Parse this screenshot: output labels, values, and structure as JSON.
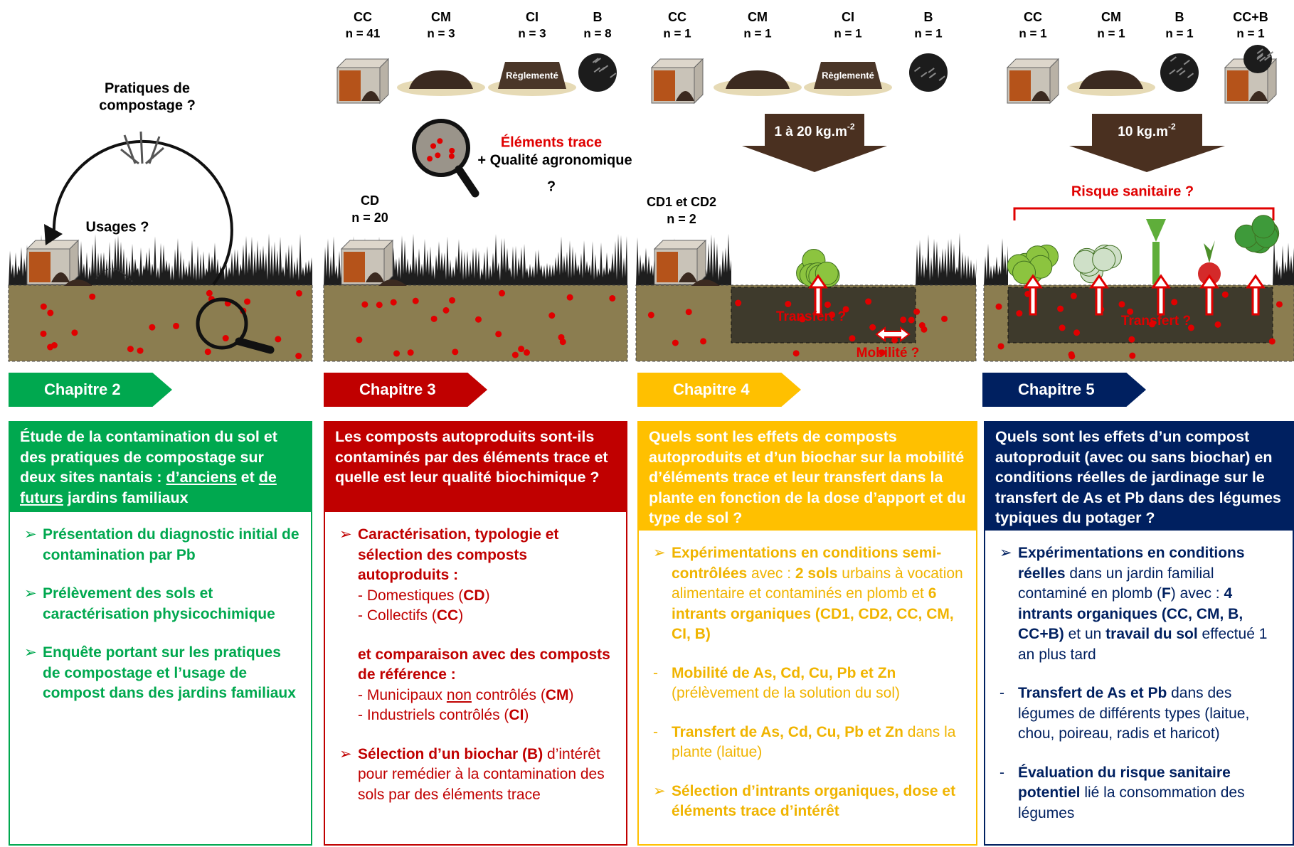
{
  "columns": [
    {
      "chapter": "Chapitre 2",
      "illustration": {
        "question": [
          "Pratiques de",
          "compostage ?"
        ],
        "usages": "Usages ?"
      },
      "header": [
        "Étude de la contamination du sol et des pratiques de compostage sur deux sites nantais : ",
        {
          "underline": "d’anciens"
        },
        " et ",
        {
          "underline": "de futurs"
        },
        " jardins familiaux"
      ],
      "bullets": [
        {
          "marker": "➢",
          "lines": [
            [
              {
                "bold": "Présentation du diagnostic initial de contamination par Pb"
              }
            ]
          ]
        },
        {
          "marker": "➢",
          "lines": [
            [
              {
                "bold": "Prélèvement des sols et caractérisation physicochimique"
              }
            ]
          ]
        },
        {
          "marker": "➢",
          "lines": [
            [
              {
                "bold": "Enquête portant sur les pratiques de compostage et l’usage de compost dans des jardins familiaux"
              }
            ]
          ]
        }
      ]
    },
    {
      "chapter": "Chapitre 3",
      "illustration": {
        "inputs": [
          {
            "code": "CC",
            "n": "n = 41"
          },
          {
            "code": "CM",
            "n": "n = 3"
          },
          {
            "code": "CI",
            "n": "n = 3"
          },
          {
            "code": "B",
            "n": "n = 8"
          }
        ],
        "regulated": "Règlementé",
        "site": {
          "code": "CD",
          "n": "n = 20"
        },
        "analysis": [
          "Éléments trace",
          "+ Qualité agronomique",
          "?"
        ]
      },
      "header": [
        "Les composts autoproduits sont-ils contaminés par des éléments trace et quelle est leur qualité biochimique ?"
      ],
      "bullets": [
        {
          "marker": "➢",
          "lines": [
            [
              {
                "bold": "Caractérisation, typologie et sélection des composts autoproduits :"
              }
            ],
            [
              "- Domestiques (",
              {
                "bold": "CD"
              },
              ")"
            ],
            [
              "- Collectifs (",
              {
                "bold": "CC"
              },
              ")"
            ]
          ]
        },
        {
          "lines": [
            [
              {
                "bold": "et comparaison avec des composts de référence :"
              }
            ],
            [
              "- Municipaux ",
              {
                "underline": "non"
              },
              " contrôlés (",
              {
                "bold": "CM"
              },
              ")"
            ],
            [
              "- Industriels contrôlés (",
              {
                "bold": "CI"
              },
              ")"
            ]
          ]
        },
        {
          "marker": "➢",
          "lines": [
            [
              {
                "bold": "Sélection d’un biochar (B)"
              },
              " d’intérêt pour remédier à la contamination des sols par des éléments trace"
            ]
          ]
        }
      ]
    },
    {
      "chapter": "Chapitre 4",
      "illustration": {
        "inputs": [
          {
            "code": "CC",
            "n": "n = 1"
          },
          {
            "code": "CM",
            "n": "n = 1"
          },
          {
            "code": "CI",
            "n": "n = 1"
          },
          {
            "code": "B",
            "n": "n = 1"
          }
        ],
        "regulated": "Règlementé",
        "dose": {
          "text": "1 à 20 kg.m",
          "exponent": "-2"
        },
        "site": {
          "code": "CD1 et CD2",
          "n": "n = 2"
        },
        "transfer": "Transfert ?",
        "mobility": "Mobilité ?"
      },
      "header": [
        "Quels sont les effets de composts autoproduits et d’un biochar sur la mobilité d’éléments trace et leur transfert dans la plante en fonction de la dose d’apport et du type de sol ?"
      ],
      "bullets": [
        {
          "marker": "➢",
          "lines": [
            [
              {
                "bold": "Expérimentations en conditions semi-contrôlées"
              },
              " avec : ",
              {
                "bold": "2 sols"
              },
              " urbains à vocation alimentaire et contaminés en plomb et ",
              {
                "bold": "6 intrants organiques (CD1, CD2, CC, CM, CI, B)"
              }
            ]
          ]
        },
        {
          "marker": "-",
          "lines": [
            [
              {
                "bold": "Mobilité de As, Cd, Cu, Pb et Zn"
              },
              " (prélèvement de la solution du sol)"
            ]
          ]
        },
        {
          "marker": "-",
          "lines": [
            [
              {
                "bold": "Transfert de As, Cd, Cu, Pb et Zn"
              },
              " dans la plante (laitue)"
            ]
          ]
        },
        {
          "marker": "➢",
          "lines": [
            [
              {
                "bold": "Sélection d’intrants organiques, dose et éléments trace d’intérêt"
              }
            ]
          ]
        }
      ]
    },
    {
      "chapter": "Chapitre 5",
      "illustration": {
        "inputs": [
          {
            "code": "CC",
            "n": "n = 1"
          },
          {
            "code": "CM",
            "n": "n = 1"
          },
          {
            "code": "B",
            "n": "n = 1"
          },
          {
            "code": "CC+B",
            "n": "n = 1"
          }
        ],
        "dose": {
          "text": "10 kg.m",
          "exponent": "-2"
        },
        "risk": "Risque sanitaire ?",
        "transfer": "Transfert ?"
      },
      "header": [
        "Quels sont les effets d’un compost autoproduit (avec ou sans biochar) en conditions réelles de jardinage sur le transfert de As et Pb dans des légumes typiques du potager ?"
      ],
      "bullets": [
        {
          "marker": "➢",
          "lines": [
            [
              {
                "bold": "Expérimentations en conditions réelles"
              },
              " dans un jardin familial contaminé en plomb (",
              {
                "bold": "F"
              },
              ") avec : ",
              {
                "bold": "4 intrants organiques (CC, CM, B, CC+B)"
              },
              " et un ",
              {
                "bold": "travail du sol"
              },
              " effectué 1 an plus tard"
            ]
          ]
        },
        {
          "marker": "-",
          "lines": [
            [
              {
                "bold": "Transfert de As et Pb"
              },
              " dans des légumes de différents types (laitue, chou, poireau, radis et haricot)"
            ]
          ]
        },
        {
          "marker": "-",
          "lines": [
            [
              {
                "bold": "Évaluation du risque sanitaire potentiel"
              },
              " lié la consommation des légumes"
            ]
          ]
        }
      ]
    }
  ]
}
